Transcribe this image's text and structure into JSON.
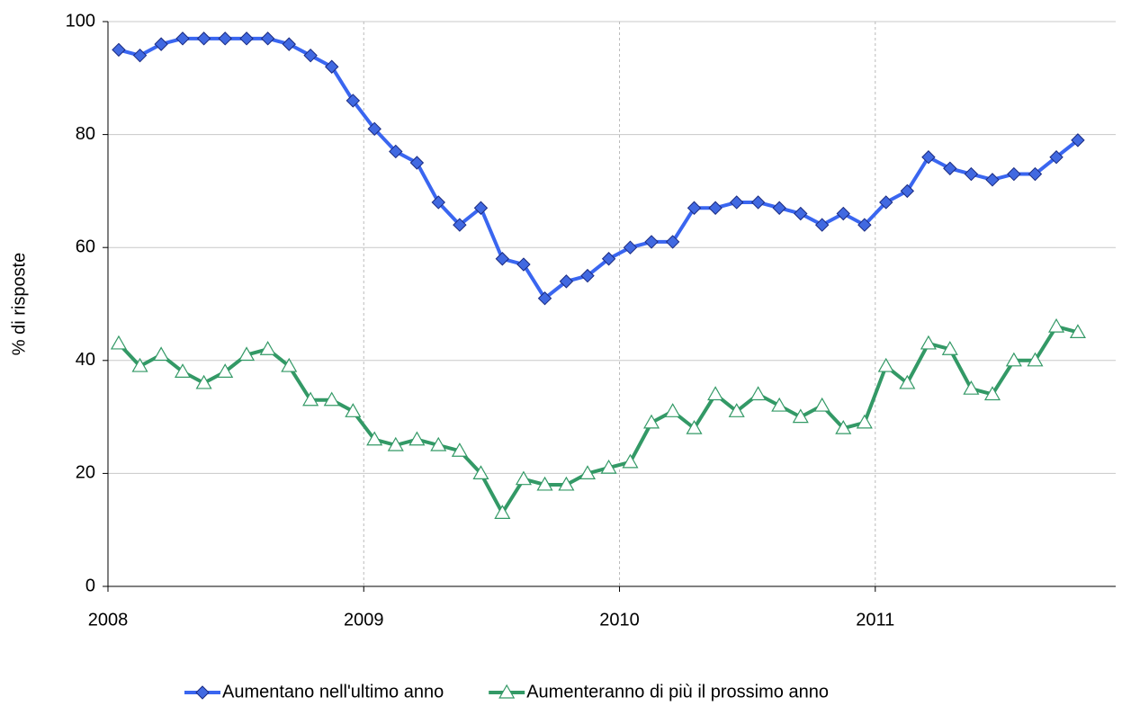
{
  "chart_data": {
    "type": "line",
    "y_label": "% di risposte",
    "x": [
      2008.042,
      2008.125,
      2008.208,
      2008.292,
      2008.375,
      2008.458,
      2008.542,
      2008.625,
      2008.708,
      2008.792,
      2008.875,
      2008.958,
      2009.042,
      2009.125,
      2009.208,
      2009.292,
      2009.375,
      2009.458,
      2009.542,
      2009.625,
      2009.708,
      2009.792,
      2009.875,
      2009.958,
      2010.042,
      2010.125,
      2010.208,
      2010.292,
      2010.375,
      2010.458,
      2010.542,
      2010.625,
      2010.708,
      2010.792,
      2010.875,
      2010.958,
      2011.042,
      2011.125,
      2011.208,
      2011.292,
      2011.375,
      2011.458,
      2011.542,
      2011.625,
      2011.708,
      2011.792
    ],
    "series": [
      {
        "name": "Aumentano nell'ultimo anno",
        "color": "#3a66f0",
        "marker_color": "#4169e1",
        "marker": "diamond",
        "values": [
          95,
          94,
          96,
          97,
          97,
          97,
          97,
          97,
          96,
          94,
          92,
          86,
          81,
          77,
          75,
          68,
          64,
          67,
          58,
          57,
          51,
          54,
          55,
          58,
          60,
          61,
          61,
          67,
          67,
          68,
          68,
          67,
          66,
          64,
          66,
          64,
          68,
          70,
          76,
          74,
          73,
          72,
          73,
          73,
          76,
          79
        ]
      },
      {
        "name": "Aumenteranno di più il prossimo anno",
        "color": "#339966",
        "marker_color": "#ffffff",
        "marker": "triangle",
        "values": [
          43,
          39,
          41,
          38,
          36,
          38,
          41,
          42,
          39,
          33,
          33,
          31,
          26,
          25,
          26,
          25,
          24,
          20,
          13,
          19,
          18,
          18,
          20,
          21,
          22,
          29,
          31,
          28,
          34,
          31,
          34,
          32,
          30,
          32,
          28,
          29,
          39,
          36,
          43,
          42,
          35,
          34,
          40,
          40,
          46,
          45
        ]
      }
    ],
    "xlim": [
      2008,
      2011.94
    ],
    "xticks": [
      2008,
      2009,
      2010,
      2011
    ],
    "ylim": [
      0,
      100
    ],
    "yticks": [
      0,
      20,
      40,
      60,
      80,
      100
    ],
    "grid": true,
    "legend": "bottom"
  }
}
